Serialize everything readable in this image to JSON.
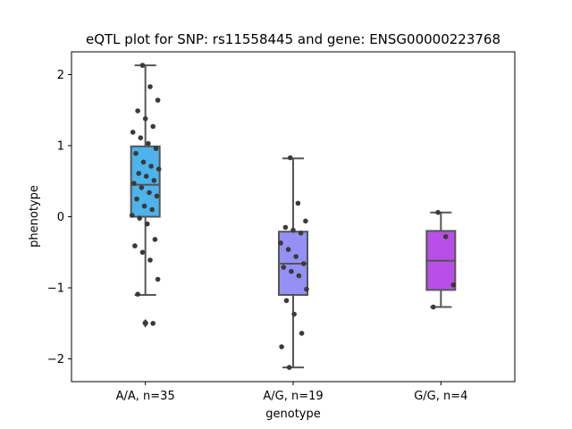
{
  "chart_data": {
    "type": "box",
    "title": "eQTL plot for SNP: rs11558445 and gene: ENSG00000223768",
    "xlabel": "genotype",
    "ylabel": "phenotype",
    "ylim": [
      -2.32,
      2.32
    ],
    "yticks": [
      -2,
      -1,
      0,
      1,
      2
    ],
    "ytick_labels": [
      "−2",
      "−1",
      "0",
      "1",
      "2"
    ],
    "grid": false,
    "categories": [
      "A/A, n=35",
      "A/G, n=19",
      "G/G, n=4"
    ],
    "colors": [
      "#4db3ea",
      "#9490f5",
      "#b84fe8"
    ],
    "boxes": [
      {
        "q1": 0.0,
        "median": 0.45,
        "q3": 0.99,
        "whisker_low": -1.1,
        "whisker_high": 2.13,
        "outliers": [
          -1.5
        ]
      },
      {
        "q1": -1.1,
        "median": -0.66,
        "q3": -0.21,
        "whisker_low": -2.12,
        "whisker_high": 0.82,
        "outliers": []
      },
      {
        "q1": -1.03,
        "median": -0.62,
        "q3": -0.2,
        "whisker_low": -1.27,
        "whisker_high": 0.06,
        "outliers": []
      }
    ],
    "points": [
      {
        "category": "A/A, n=35",
        "values": [
          2.13,
          1.83,
          1.64,
          1.49,
          1.38,
          1.27,
          1.19,
          1.11,
          1.03,
          0.96,
          0.89,
          0.77,
          0.71,
          0.67,
          0.61,
          0.57,
          0.51,
          0.47,
          0.41,
          0.34,
          0.29,
          0.25,
          0.15,
          0.1,
          0.02,
          -0.02,
          -0.1,
          -0.32,
          -0.41,
          -0.5,
          -0.61,
          -0.88,
          -1.09,
          -1.49,
          -1.5
        ]
      },
      {
        "category": "A/G, n=19",
        "values": [
          0.83,
          0.19,
          -0.06,
          -0.15,
          -0.19,
          -0.23,
          -0.37,
          -0.46,
          -0.56,
          -0.66,
          -0.71,
          -0.77,
          -0.83,
          -1.02,
          -1.18,
          -1.37,
          -1.64,
          -1.83,
          -2.12
        ]
      },
      {
        "category": "G/G, n=4",
        "values": [
          0.06,
          -0.28,
          -0.96,
          -1.27
        ]
      }
    ]
  }
}
